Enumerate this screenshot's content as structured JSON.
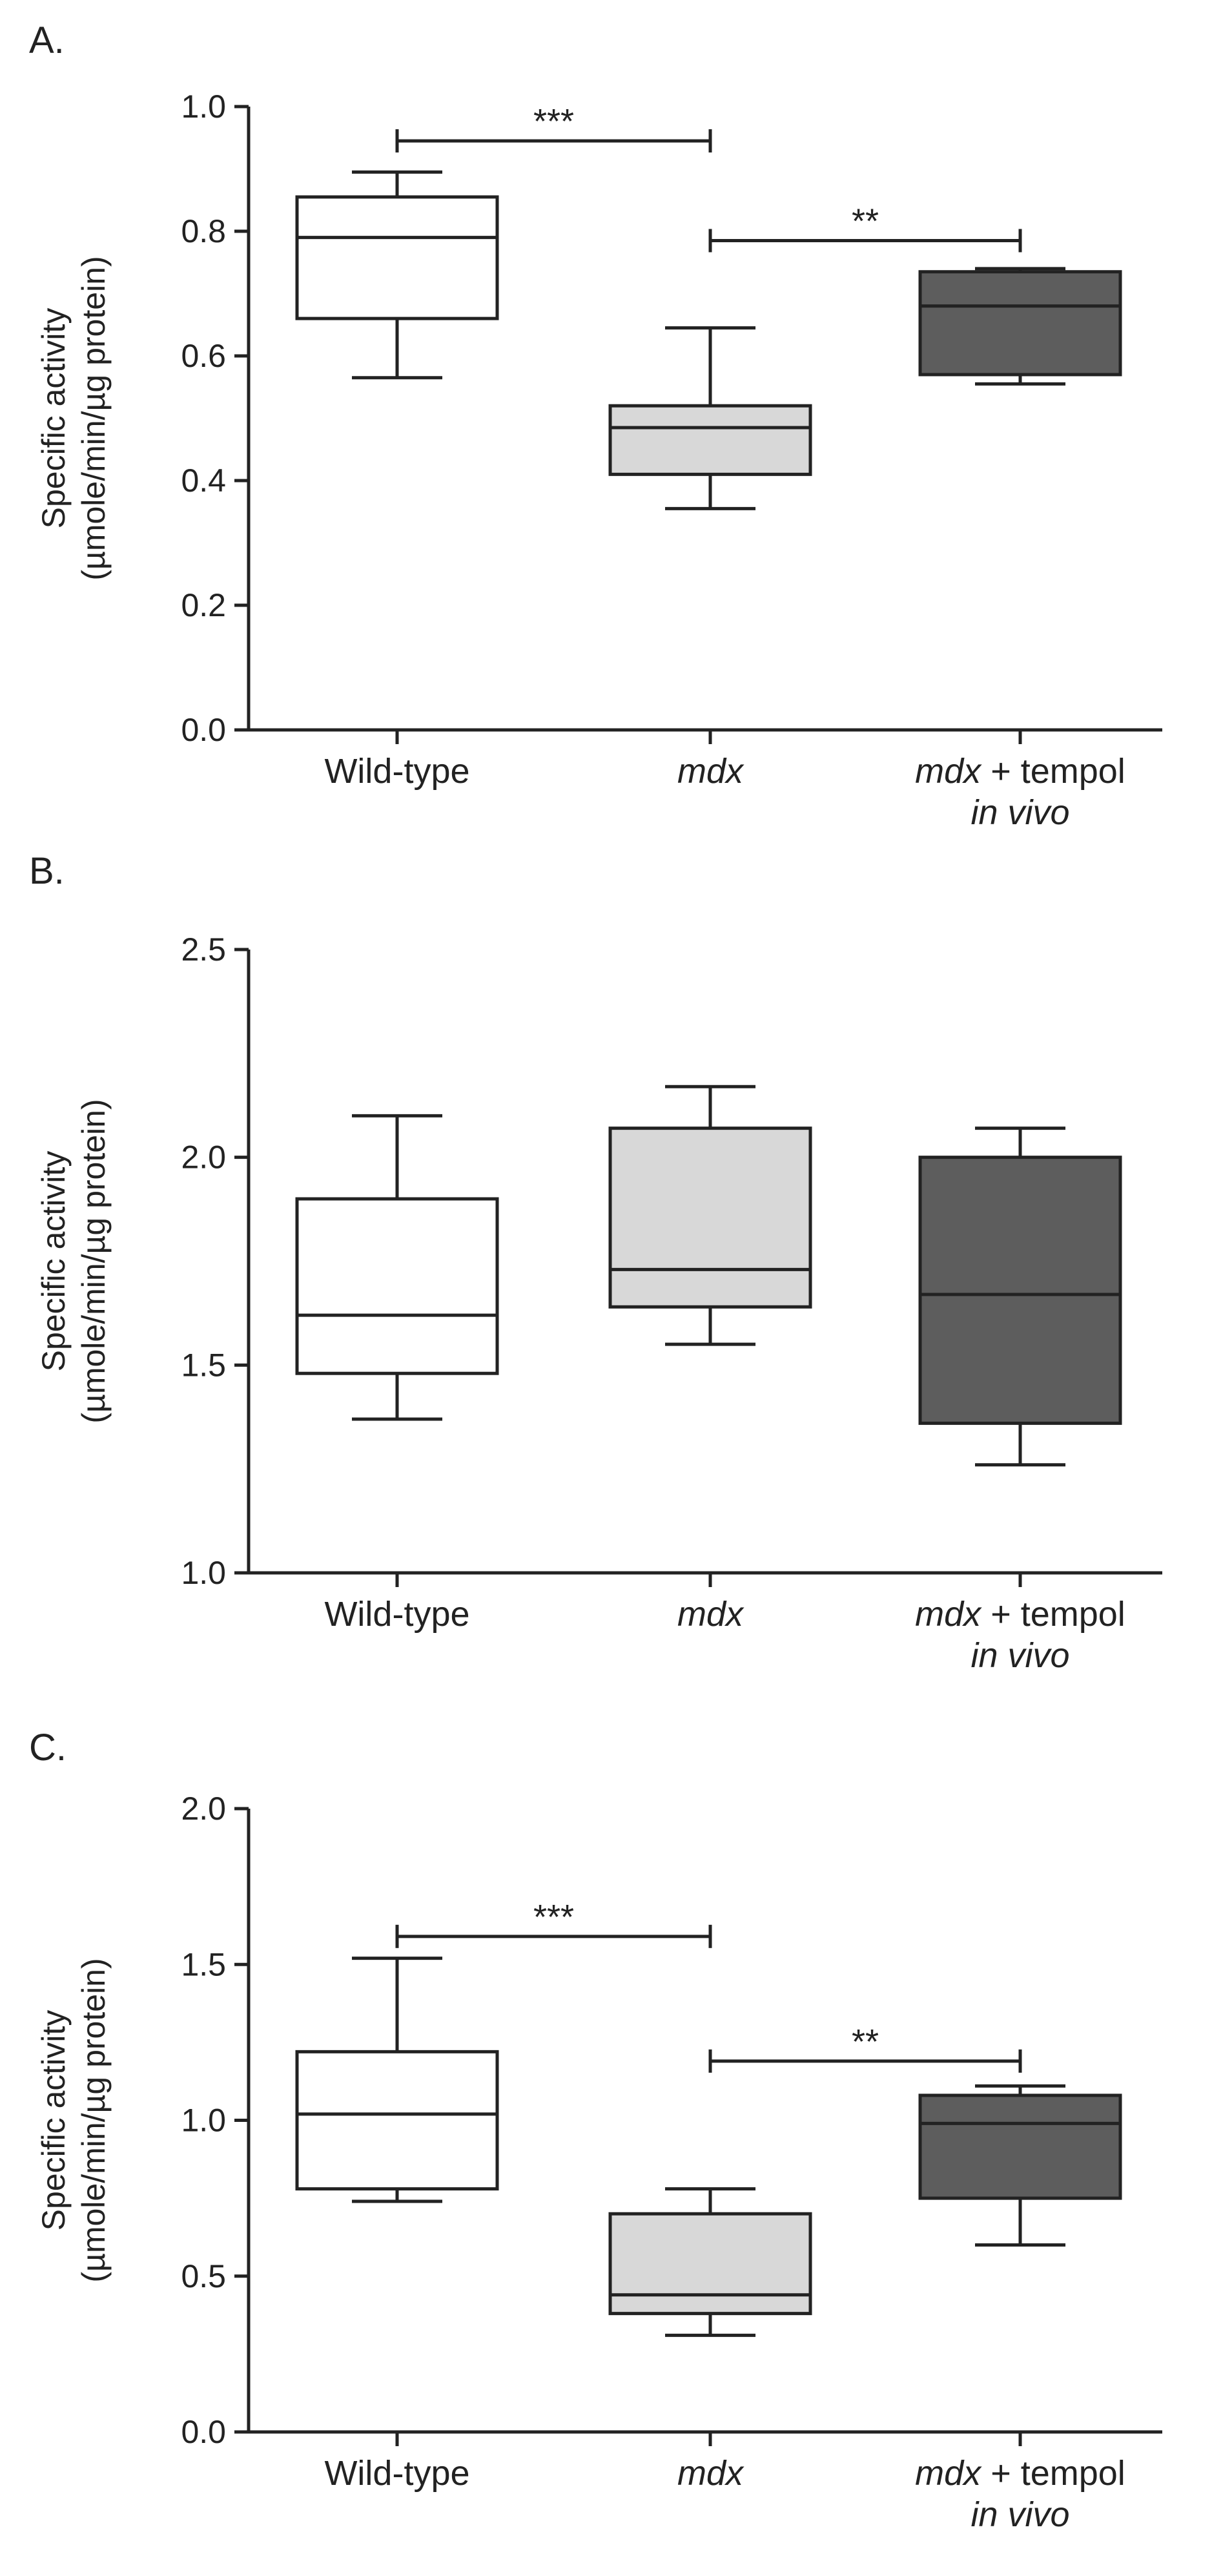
{
  "chart_data": [
    {
      "type": "boxplot",
      "panel_label": "A.",
      "ylabel_lines": [
        "Specific activity",
        "(µmole/min/µg protein)"
      ],
      "ylim": [
        0.0,
        1.0
      ],
      "yticks": [
        {
          "value": 0.0,
          "label": "0.0"
        },
        {
          "value": 0.2,
          "label": "0.2"
        },
        {
          "value": 0.4,
          "label": "0.4"
        },
        {
          "value": 0.6,
          "label": "0.6"
        },
        {
          "value": 0.8,
          "label": "0.8"
        },
        {
          "value": 1.0,
          "label": "1.0"
        }
      ],
      "categories": [
        {
          "segments": [
            {
              "text": "Wild-type",
              "italic": false
            }
          ],
          "line2": ""
        },
        {
          "segments": [
            {
              "text": "mdx",
              "italic": true
            }
          ],
          "line2": ""
        },
        {
          "segments": [
            {
              "text": "mdx",
              "italic": true
            },
            {
              "text": " + tempol",
              "italic": false
            }
          ],
          "line2": "in vivo"
        }
      ],
      "boxes": [
        {
          "min": 0.565,
          "q1": 0.66,
          "median": 0.79,
          "q3": 0.855,
          "max": 0.895,
          "color": "#ffffff"
        },
        {
          "min": 0.355,
          "q1": 0.41,
          "median": 0.485,
          "q3": 0.52,
          "max": 0.645,
          "color": "#d8d8d8"
        },
        {
          "min": 0.555,
          "q1": 0.57,
          "median": 0.68,
          "q3": 0.735,
          "max": 0.74,
          "color": "#5d5d5d"
        }
      ],
      "significance": [
        {
          "from": 0,
          "to": 1,
          "y": 0.945,
          "label": "***"
        },
        {
          "from": 1,
          "to": 2,
          "y": 0.785,
          "label": "**"
        }
      ]
    },
    {
      "type": "boxplot",
      "panel_label": "B.",
      "ylabel_lines": [
        "Specific activity",
        "(µmole/min/µg protein)"
      ],
      "ylim": [
        1.0,
        2.5
      ],
      "yticks": [
        {
          "value": 1.0,
          "label": "1.0"
        },
        {
          "value": 1.5,
          "label": "1.5"
        },
        {
          "value": 2.0,
          "label": "2.0"
        },
        {
          "value": 2.5,
          "label": "2.5"
        }
      ],
      "categories": [
        {
          "segments": [
            {
              "text": "Wild-type",
              "italic": false
            }
          ],
          "line2": ""
        },
        {
          "segments": [
            {
              "text": "mdx",
              "italic": true
            }
          ],
          "line2": ""
        },
        {
          "segments": [
            {
              "text": "mdx",
              "italic": true
            },
            {
              "text": " + tempol",
              "italic": false
            }
          ],
          "line2": "in vivo"
        }
      ],
      "boxes": [
        {
          "min": 1.37,
          "q1": 1.48,
          "median": 1.62,
          "q3": 1.9,
          "max": 2.1,
          "color": "#ffffff"
        },
        {
          "min": 1.55,
          "q1": 1.64,
          "median": 1.73,
          "q3": 2.07,
          "max": 2.17,
          "color": "#d8d8d8"
        },
        {
          "min": 1.26,
          "q1": 1.36,
          "median": 1.67,
          "q3": 2.0,
          "max": 2.07,
          "color": "#5d5d5d"
        }
      ],
      "significance": []
    },
    {
      "type": "boxplot",
      "panel_label": "C.",
      "ylabel_lines": [
        "Specific activity",
        "(µmole/min/µg protein)"
      ],
      "ylim": [
        0.0,
        2.0
      ],
      "yticks": [
        {
          "value": 0.0,
          "label": "0.0"
        },
        {
          "value": 0.5,
          "label": "0.5"
        },
        {
          "value": 1.0,
          "label": "1.0"
        },
        {
          "value": 1.5,
          "label": "1.5"
        },
        {
          "value": 2.0,
          "label": "2.0"
        }
      ],
      "categories": [
        {
          "segments": [
            {
              "text": "Wild-type",
              "italic": false
            }
          ],
          "line2": ""
        },
        {
          "segments": [
            {
              "text": "mdx",
              "italic": true
            }
          ],
          "line2": ""
        },
        {
          "segments": [
            {
              "text": "mdx",
              "italic": true
            },
            {
              "text": " + tempol",
              "italic": false
            }
          ],
          "line2": "in vivo"
        }
      ],
      "boxes": [
        {
          "min": 0.74,
          "q1": 0.78,
          "median": 1.02,
          "q3": 1.22,
          "max": 1.52,
          "color": "#ffffff"
        },
        {
          "min": 0.31,
          "q1": 0.38,
          "median": 0.44,
          "q3": 0.7,
          "max": 0.78,
          "color": "#d8d8d8"
        },
        {
          "min": 0.6,
          "q1": 0.75,
          "median": 0.99,
          "q3": 1.08,
          "max": 1.11,
          "color": "#5d5d5d"
        }
      ],
      "significance": [
        {
          "from": 0,
          "to": 1,
          "y": 1.59,
          "label": "***"
        },
        {
          "from": 1,
          "to": 2,
          "y": 1.19,
          "label": "**"
        }
      ]
    }
  ]
}
